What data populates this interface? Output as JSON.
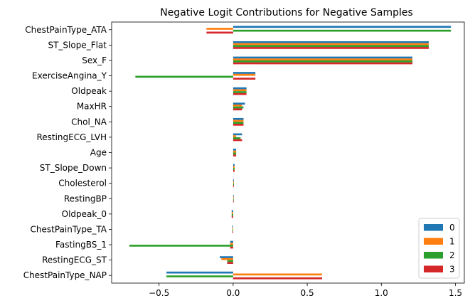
{
  "chart_data": {
    "type": "bar",
    "orientation": "horizontal",
    "title": "Negative Logit Contributions for Negative Samples",
    "xlabel": "",
    "ylabel": "",
    "xlim": [
      -0.82,
      1.56
    ],
    "xticks": [
      -0.5,
      0.0,
      0.5,
      1.0,
      1.5
    ],
    "xtick_labels": [
      "−0.5",
      "0.0",
      "0.5",
      "1.0",
      "1.5"
    ],
    "grid": false,
    "legend_position": "lower-right",
    "categories": [
      "ChestPainType_ATA",
      "ST_Slope_Flat",
      "Sex_F",
      "ExerciseAngina_Y",
      "Oldpeak",
      "MaxHR",
      "Chol_NA",
      "RestingECG_LVH",
      "Age",
      "ST_Slope_Down",
      "Cholesterol",
      "RestingBP",
      "Oldpeak_0",
      "ChestPainType_TA",
      "FastingBS_1",
      "RestingECG_ST",
      "ChestPainType_NAP"
    ],
    "series": [
      {
        "name": "0",
        "color": "#1f77b4",
        "values": [
          1.47,
          1.32,
          1.21,
          0.15,
          0.09,
          0.08,
          0.07,
          0.06,
          0.02,
          0.01,
          0.005,
          0.004,
          -0.01,
          -0.005,
          -0.02,
          -0.09,
          -0.45
        ]
      },
      {
        "name": "1",
        "color": "#ff7f0e",
        "values": [
          -0.18,
          1.32,
          1.21,
          0.15,
          0.09,
          0.06,
          0.07,
          0.02,
          0.02,
          0.01,
          0.005,
          0.004,
          -0.01,
          -0.005,
          -0.02,
          -0.08,
          0.6
        ]
      },
      {
        "name": "2",
        "color": "#2ca02c",
        "values": [
          1.47,
          1.32,
          1.21,
          -0.66,
          0.09,
          0.07,
          0.07,
          0.05,
          0.02,
          0.01,
          0.005,
          0.004,
          -0.01,
          -0.005,
          -0.7,
          -0.04,
          -0.45
        ]
      },
      {
        "name": "3",
        "color": "#d62728",
        "values": [
          -0.18,
          1.32,
          1.21,
          0.15,
          0.09,
          0.06,
          0.07,
          0.06,
          0.02,
          0.01,
          0.005,
          0.004,
          -0.01,
          -0.005,
          -0.02,
          -0.04,
          0.6
        ]
      }
    ]
  }
}
